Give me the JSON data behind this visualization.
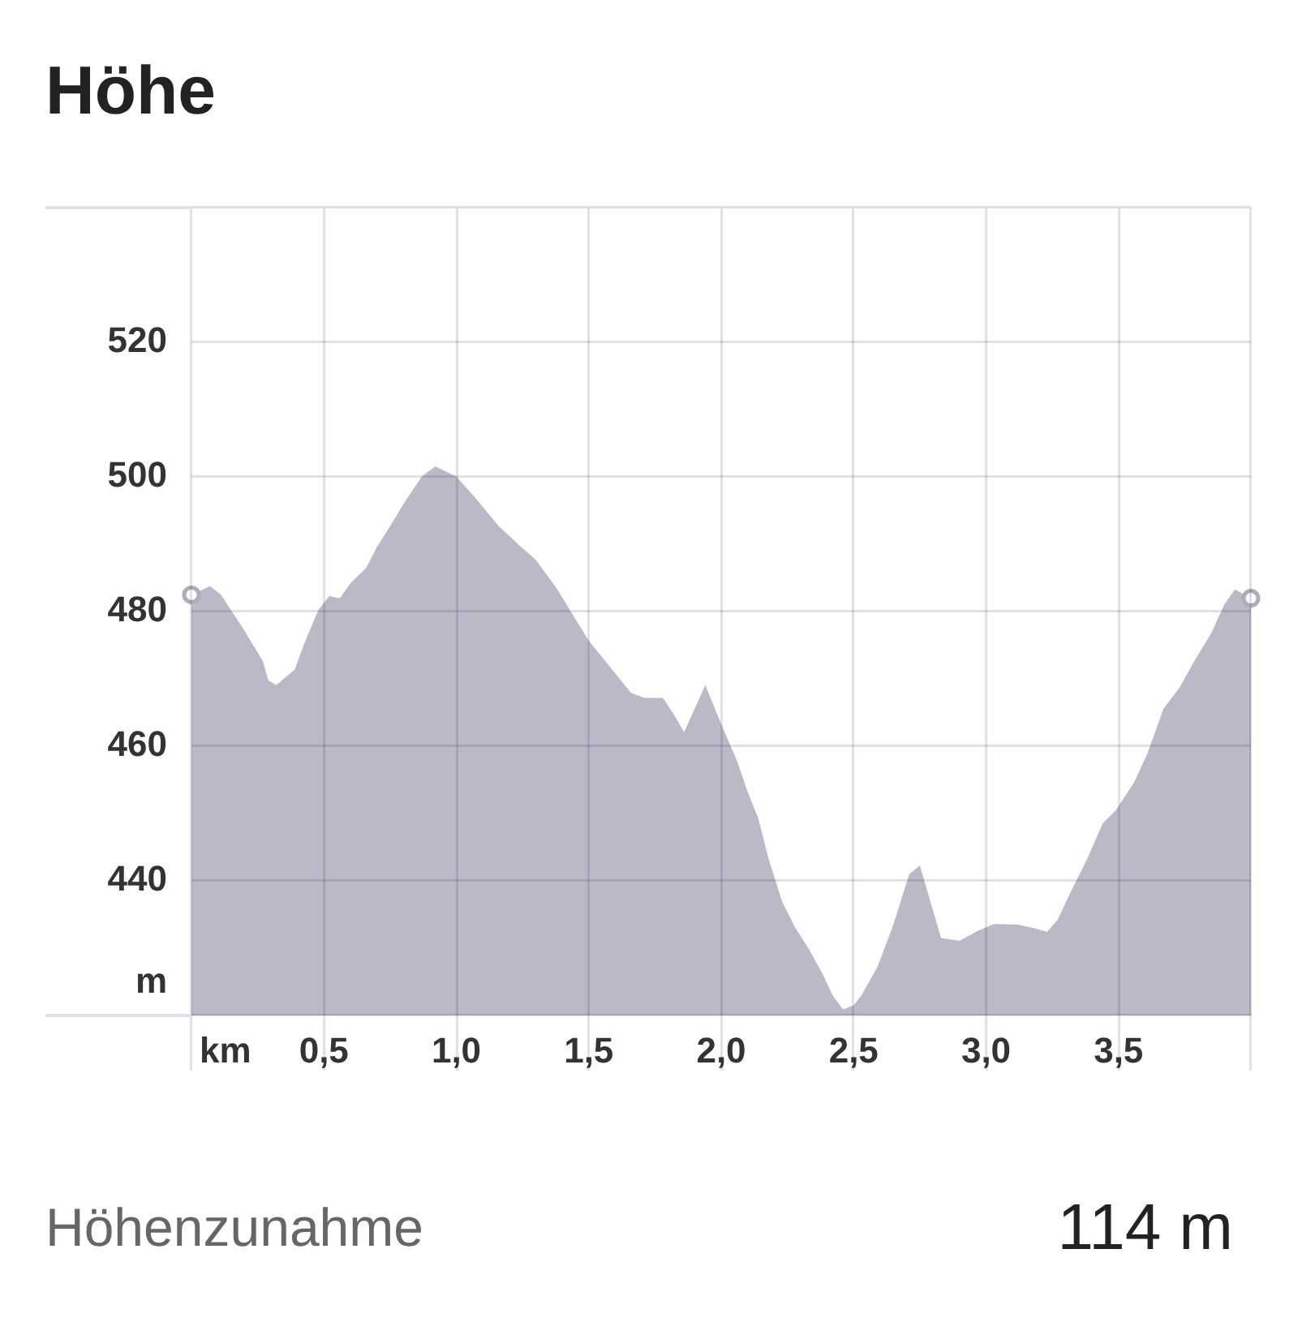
{
  "chart_data": {
    "type": "area",
    "title": "Höhe",
    "xlabel": "km",
    "ylabel": "m",
    "annotations": [
      "Höhenzunahme",
      "114 m"
    ],
    "xlim": [
      0,
      4.0
    ],
    "ylim": [
      420,
      540
    ],
    "xticks": [
      {
        "value": 0,
        "label": null
      },
      {
        "value": 0.5,
        "label": "0,5"
      },
      {
        "value": 1.0,
        "label": "1,0"
      },
      {
        "value": 1.5,
        "label": "1,5"
      },
      {
        "value": 2.0,
        "label": "2,0"
      },
      {
        "value": 2.5,
        "label": "2,5"
      },
      {
        "value": 3.0,
        "label": "3,0"
      },
      {
        "value": 3.5,
        "label": "3,5"
      },
      {
        "value": 4.0,
        "label": null
      }
    ],
    "yticks": [
      {
        "value": 420,
        "label": null
      },
      440,
      460,
      480,
      500,
      520,
      {
        "value": 540,
        "label": null
      }
    ],
    "grid": true,
    "series": [
      {
        "type": "area",
        "color": "#b9b9c7",
        "x": [
          0,
          0.07,
          0.11,
          0.2,
          0.27,
          0.29,
          0.32,
          0.39,
          0.43,
          0.48,
          0.52,
          0.56,
          0.6,
          0.66,
          0.7,
          0.75,
          0.81,
          0.87,
          0.92,
          1.0,
          1.07,
          1.16,
          1.24,
          1.3,
          1.38,
          1.44,
          1.5,
          1.58,
          1.66,
          1.71,
          1.78,
          1.82,
          1.86,
          1.94,
          2.0,
          2.06,
          2.1,
          2.14,
          2.18,
          2.23,
          2.28,
          2.33,
          2.38,
          2.42,
          2.46,
          2.5,
          2.53,
          2.59,
          2.65,
          2.71,
          2.75,
          2.79,
          2.83,
          2.9,
          2.97,
          3.03,
          3.12,
          3.18,
          3.23,
          3.27,
          3.32,
          3.38,
          3.44,
          3.49,
          3.56,
          3.61,
          3.67,
          3.73,
          3.79,
          3.85,
          3.9,
          3.94,
          4.0
        ],
        "values": [
          482.5,
          483.8,
          482.6,
          477.2,
          472.6,
          469.8,
          469.1,
          471.4,
          475.7,
          480.3,
          482.3,
          482.0,
          484.2,
          486.5,
          489.6,
          492.7,
          496.6,
          500.1,
          501.6,
          500.1,
          497.0,
          492.7,
          489.8,
          487.7,
          483.4,
          479.5,
          475.7,
          471.8,
          467.9,
          467.2,
          467.2,
          464.8,
          462.1,
          469.1,
          463.3,
          457.8,
          453.2,
          449.3,
          443.1,
          436.9,
          433.0,
          429.9,
          426.4,
          423.0,
          420.9,
          421.5,
          423.0,
          427.2,
          433.5,
          441.0,
          442.3,
          436.9,
          431.5,
          431.1,
          432.6,
          433.6,
          433.5,
          433.0,
          432.4,
          434.2,
          438.4,
          443.1,
          448.5,
          450.5,
          454.7,
          459.0,
          465.6,
          468.7,
          472.9,
          476.8,
          481.1,
          483.3,
          482.0
        ]
      },
      {
        "type": "scatter",
        "color": "#aeadbb",
        "marker": "circle",
        "x": [
          0,
          4.0
        ],
        "values": [
          482.5,
          482.0
        ]
      }
    ]
  }
}
